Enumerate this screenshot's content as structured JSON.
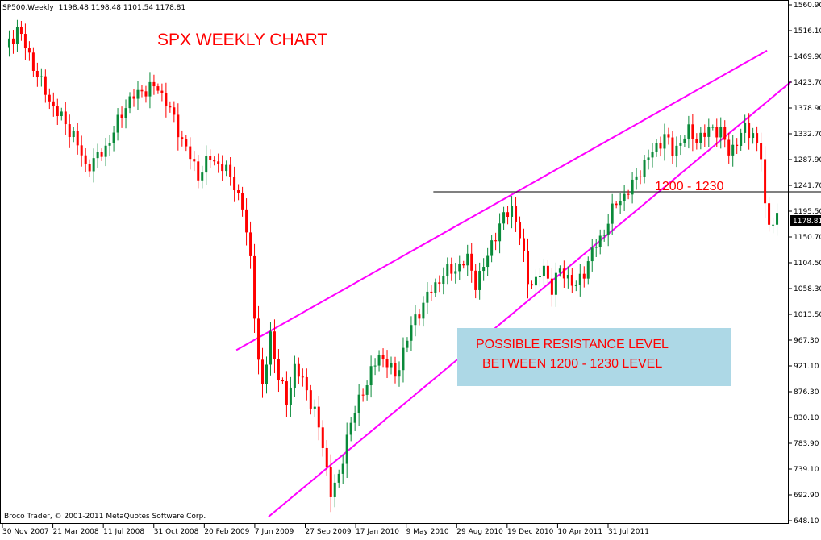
{
  "header": {
    "symbol": "SP500,Weekly",
    "ohlc": "1198.48 1198.48 1101.54 1178.81"
  },
  "copyright": "Broco Trader, © 2001-2011 MetaQuotes Software Corp.",
  "colors": {
    "background": "#ffffff",
    "frame": "#000000",
    "up_candle": "#0a8a3a",
    "down_candle": "#ff0000",
    "trendline": "#ff00ff",
    "annotation_text": "#ff0000",
    "note_box": "#add8e6",
    "price_tag": "#000000"
  },
  "chart_data": {
    "type": "candlestick",
    "title": "SPX WEEKLY CHART",
    "instrument": "SP500",
    "timeframe": "Weekly",
    "last_price_label": "1178.81",
    "y_tick_labels": [
      "1560.90",
      "1516.10",
      "1469.90",
      "1423.70",
      "1378.90",
      "1332.70",
      "1287.90",
      "1241.70",
      "1195.50",
      "1150.70",
      "1104.50",
      "1058.30",
      "1013.50",
      "967.30",
      "921.10",
      "876.30",
      "830.10",
      "783.90",
      "739.10",
      "692.90",
      "648.10"
    ],
    "x_tick_labels": [
      "30 Nov 2007",
      "21 Mar 2008",
      "11 Jul 2008",
      "31 Oct 2008",
      "20 Feb 2009",
      "7 Jun 2009",
      "27 Sep 2009",
      "17 Jan 2010",
      "9 May 2010",
      "29 Aug 2010",
      "19 Dec 2010",
      "10 Apr 2011",
      "31 Jul 2011"
    ],
    "ylim": [
      648.1,
      1560.9
    ],
    "weeks_total": 195,
    "bars_visible": 193,
    "grid": false,
    "anchors": [
      [
        0,
        1480
      ],
      [
        3,
        1520
      ],
      [
        6,
        1470
      ],
      [
        9,
        1420
      ],
      [
        12,
        1380
      ],
      [
        15,
        1350
      ],
      [
        17,
        1330
      ],
      [
        20,
        1275
      ],
      [
        23,
        1290
      ],
      [
        26,
        1320
      ],
      [
        30,
        1385
      ],
      [
        34,
        1410
      ],
      [
        38,
        1415
      ],
      [
        40,
        1390
      ],
      [
        43,
        1340
      ],
      [
        46,
        1290
      ],
      [
        48,
        1260
      ],
      [
        51,
        1290
      ],
      [
        54,
        1275
      ],
      [
        57,
        1245
      ],
      [
        59,
        1200
      ],
      [
        61,
        1110
      ],
      [
        63,
        930
      ],
      [
        64,
        880
      ],
      [
        66,
        980
      ],
      [
        68,
        900
      ],
      [
        70,
        860
      ],
      [
        72,
        920
      ],
      [
        75,
        880
      ],
      [
        77,
        840
      ],
      [
        79,
        780
      ],
      [
        81,
        700
      ],
      [
        83,
        720
      ],
      [
        85,
        800
      ],
      [
        87,
        840
      ],
      [
        89,
        880
      ],
      [
        91,
        910
      ],
      [
        93,
        940
      ],
      [
        95,
        930
      ],
      [
        97,
        900
      ],
      [
        99,
        950
      ],
      [
        101,
        990
      ],
      [
        103,
        1020
      ],
      [
        105,
        1045
      ],
      [
        107,
        1065
      ],
      [
        109,
        1085
      ],
      [
        111,
        1090
      ],
      [
        113,
        1100
      ],
      [
        115,
        1110
      ],
      [
        117,
        1070
      ],
      [
        119,
        1095
      ],
      [
        121,
        1140
      ],
      [
        123,
        1170
      ],
      [
        125,
        1195
      ],
      [
        126,
        1205
      ],
      [
        128,
        1150
      ],
      [
        130,
        1075
      ],
      [
        132,
        1070
      ],
      [
        134,
        1095
      ],
      [
        136,
        1060
      ],
      [
        138,
        1090
      ],
      [
        140,
        1080
      ],
      [
        142,
        1060
      ],
      [
        144,
        1090
      ],
      [
        146,
        1125
      ],
      [
        148,
        1145
      ],
      [
        150,
        1180
      ],
      [
        152,
        1210
      ],
      [
        154,
        1225
      ],
      [
        156,
        1240
      ],
      [
        158,
        1270
      ],
      [
        160,
        1290
      ],
      [
        162,
        1310
      ],
      [
        164,
        1330
      ],
      [
        166,
        1300
      ],
      [
        168,
        1320
      ],
      [
        170,
        1335
      ],
      [
        172,
        1325
      ],
      [
        174,
        1330
      ],
      [
        176,
        1345
      ],
      [
        178,
        1335
      ],
      [
        180,
        1300
      ],
      [
        182,
        1320
      ],
      [
        184,
        1340
      ],
      [
        186,
        1335
      ],
      [
        188,
        1290
      ],
      [
        189,
        1200
      ],
      [
        190,
        1180
      ]
    ],
    "trendlines": [
      {
        "name": "upper",
        "from": [
          58,
          950
        ],
        "to": [
          190,
          1480
        ]
      },
      {
        "name": "lower",
        "from": [
          66,
          655
        ],
        "to": [
          196,
          1425
        ]
      },
      {
        "name": "resistance",
        "from": [
          107,
          1230
        ],
        "to": [
          214,
          1230
        ]
      }
    ],
    "annotations": {
      "level_label": "1200 - 1230",
      "note_line1": "POSSIBLE RESISTANCE LEVEL",
      "note_line2": "BETWEEN 1200 - 1230 LEVEL"
    }
  }
}
